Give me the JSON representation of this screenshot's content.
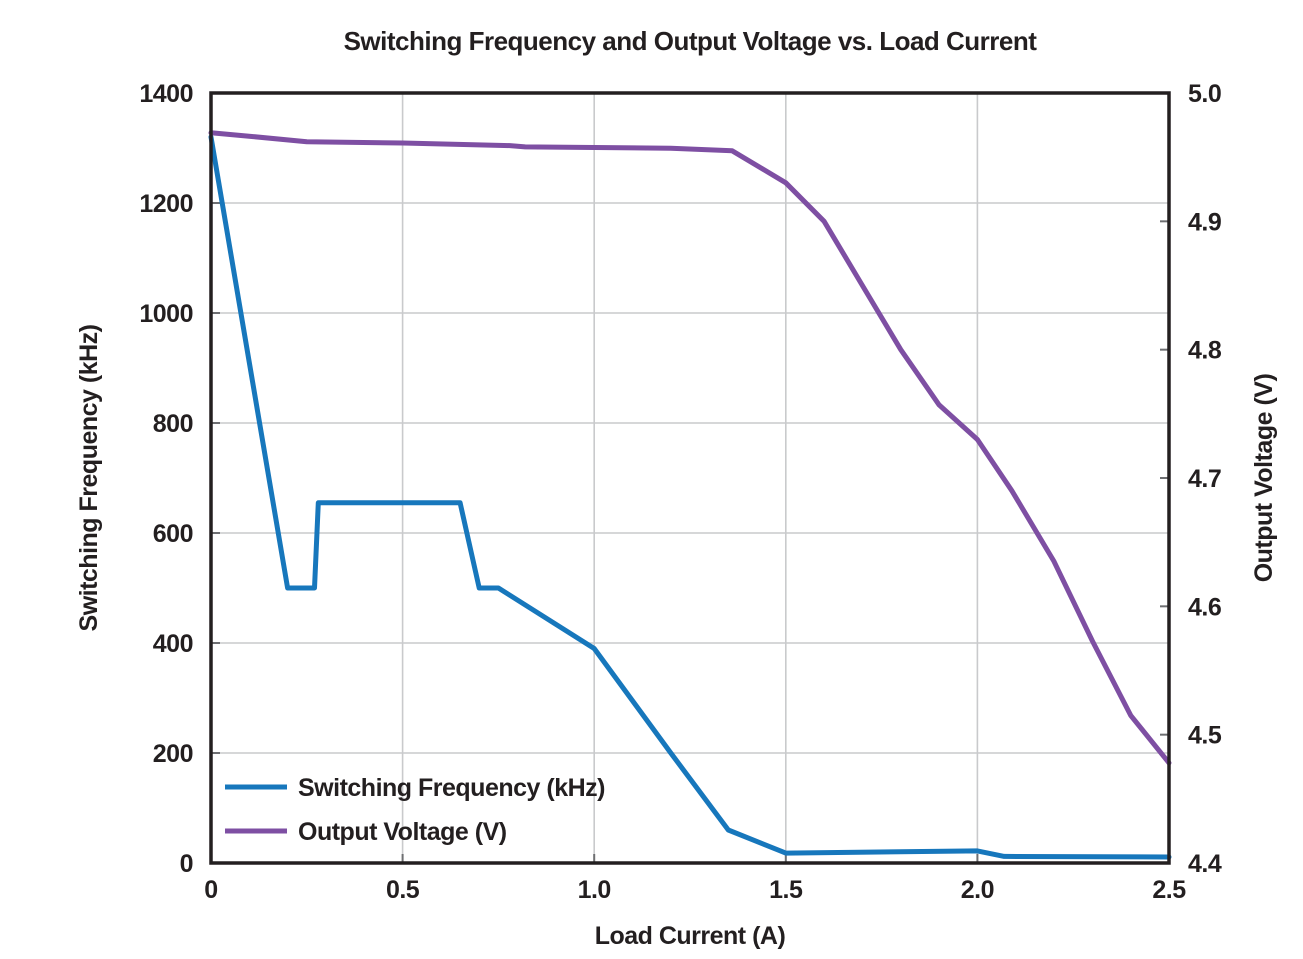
{
  "title": "Switching Frequency and Output Voltage vs. Load Current",
  "chart_data": {
    "type": "line",
    "title": "Switching Frequency and Output Voltage vs. Load Current",
    "xlabel": "Load Current (A)",
    "ylabel_left": "Switching Frequency (kHz)",
    "ylabel_right": "Output Voltage (V)",
    "xlim": [
      0,
      2.5
    ],
    "ylim_left": [
      0,
      1400
    ],
    "ylim_right": [
      4.4,
      5.0
    ],
    "x_ticks": [
      0,
      0.5,
      1.0,
      1.5,
      2.0,
      2.5
    ],
    "x_tick_labels": [
      "0",
      "0.5",
      "1.0",
      "1.5",
      "2.0",
      "2.5"
    ],
    "y_left_ticks": [
      0,
      200,
      400,
      600,
      800,
      1000,
      1200,
      1400
    ],
    "y_left_tick_labels": [
      "0",
      "200",
      "400",
      "600",
      "800",
      "1000",
      "1200",
      "1400"
    ],
    "y_right_ticks": [
      4.4,
      4.5,
      4.6,
      4.7,
      4.8,
      4.9,
      5.0
    ],
    "y_right_tick_labels": [
      "4.4",
      "4.5",
      "4.6",
      "4.7",
      "4.8",
      "4.9",
      "5.0"
    ],
    "grid": true,
    "legend_position": "lower-left",
    "series": [
      {
        "name": "Switching Frequency (kHz)",
        "axis": "left",
        "color": "#1777bc",
        "points": [
          [
            0,
            1320
          ],
          [
            0.2,
            500
          ],
          [
            0.27,
            500
          ],
          [
            0.28,
            655
          ],
          [
            0.65,
            655
          ],
          [
            0.7,
            500
          ],
          [
            0.75,
            500
          ],
          [
            1.0,
            390
          ],
          [
            1.2,
            200
          ],
          [
            1.35,
            60
          ],
          [
            1.5,
            18
          ],
          [
            2.0,
            22
          ],
          [
            2.07,
            12
          ],
          [
            2.5,
            11
          ]
        ]
      },
      {
        "name": "Output Voltage (V)",
        "axis": "right",
        "color": "#7e4fa3",
        "points": [
          [
            0,
            4.969
          ],
          [
            0.11,
            4.966
          ],
          [
            0.25,
            4.962
          ],
          [
            0.5,
            4.961
          ],
          [
            0.78,
            4.959
          ],
          [
            0.82,
            4.958
          ],
          [
            1.2,
            4.957
          ],
          [
            1.36,
            4.955
          ],
          [
            1.5,
            4.93
          ],
          [
            1.6,
            4.9
          ],
          [
            1.7,
            4.85
          ],
          [
            1.8,
            4.8
          ],
          [
            1.9,
            4.757
          ],
          [
            2.0,
            4.73
          ],
          [
            2.09,
            4.69
          ],
          [
            2.2,
            4.635
          ],
          [
            2.3,
            4.573
          ],
          [
            2.4,
            4.515
          ],
          [
            2.5,
            4.478
          ]
        ]
      }
    ]
  },
  "colors": {
    "background": "#ffffff",
    "axis_frame": "#231f20",
    "gridline": "#c9cacc",
    "tick": "#6e6f72",
    "text": "#231f20",
    "series_frequency": "#1777bc",
    "series_voltage": "#7e4fa3"
  }
}
